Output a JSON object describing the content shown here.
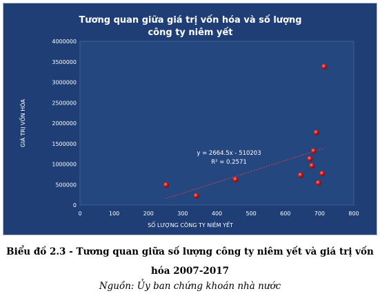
{
  "chart_data": {
    "type": "scatter",
    "title_line1": "Tương quan giữa giá trị vốn hóa và số lượng",
    "title_line2": "công ty niêm yết",
    "xlabel": "SỐ LƯỢNG CÔNG TY NIÊM YẾT",
    "ylabel": "GIÁ TRỊ VỐN HÓA",
    "xlim": [
      0,
      800
    ],
    "ylim": [
      0,
      4000000
    ],
    "x_ticks": [
      "0",
      "100",
      "200",
      "300",
      "400",
      "500",
      "600",
      "700",
      "800"
    ],
    "y_ticks": [
      "0",
      "500000",
      "1000000",
      "1500000",
      "2000000",
      "2500000",
      "3000000",
      "3500000",
      "4000000"
    ],
    "grid": false,
    "points": [
      {
        "x": 252,
        "y": 490000
      },
      {
        "x": 340,
        "y": 225000
      },
      {
        "x": 455,
        "y": 625000
      },
      {
        "x": 645,
        "y": 730000
      },
      {
        "x": 672,
        "y": 1130000
      },
      {
        "x": 678,
        "y": 960000
      },
      {
        "x": 683,
        "y": 1320000
      },
      {
        "x": 691,
        "y": 1770000
      },
      {
        "x": 697,
        "y": 540000
      },
      {
        "x": 708,
        "y": 770000
      },
      {
        "x": 714,
        "y": 3380000
      }
    ],
    "trendline": {
      "equation": "y = 2664.5x - 510203",
      "r_squared": "R² = 0.2571",
      "slope": 2664.5,
      "intercept": -510203,
      "x_range": [
        252,
        714
      ]
    },
    "colors": {
      "background": "#1e3e75",
      "plot_area": "#24477f",
      "point": "#d92020",
      "trendline": "#e04040"
    }
  },
  "caption": {
    "main": "Biểu đồ 2.3 - Tương quan giữa số lượng công ty niêm yết và giá trị vốn hóa 2007-2017",
    "source": "Nguồn: Ủy ban chứng khoán nhà nước"
  }
}
